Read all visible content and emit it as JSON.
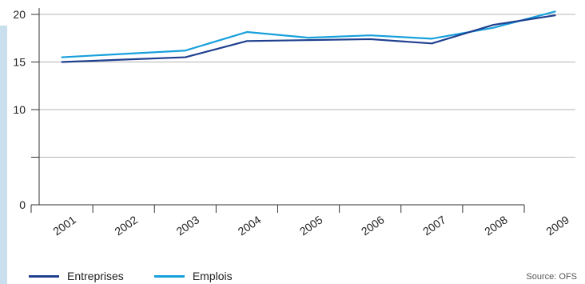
{
  "chart_data": {
    "type": "line",
    "categories": [
      "2001",
      "2002",
      "2003",
      "2004",
      "2005",
      "2006",
      "2007",
      "2008",
      "2009"
    ],
    "series": [
      {
        "name": "Entreprises",
        "color": "#1f3f8f",
        "values": [
          15.0,
          15.25,
          15.5,
          17.2,
          17.3,
          17.4,
          16.95,
          18.9,
          19.9
        ]
      },
      {
        "name": "Emplois",
        "color": "#18a0dc",
        "values": [
          15.5,
          15.85,
          16.2,
          18.15,
          17.55,
          17.8,
          17.45,
          18.6,
          20.3
        ]
      }
    ],
    "ylim": [
      0,
      20
    ],
    "yticks": [
      0,
      5,
      10,
      15,
      20
    ],
    "yticklabels": [
      "0",
      "",
      "10",
      "15",
      "20"
    ],
    "grid": true,
    "legend": "bottom-left",
    "source": "Source: OFS"
  }
}
